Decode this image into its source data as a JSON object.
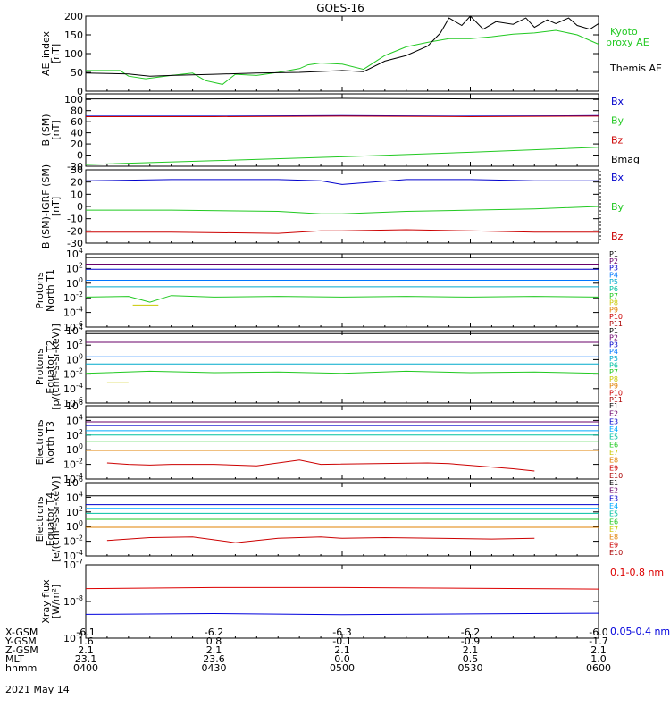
{
  "title": "GOES-16",
  "date": "2021 May 14",
  "x_ticks": [
    "0400",
    "0430",
    "0500",
    "0530",
    "0600"
  ],
  "ephemeris": {
    "rows": [
      {
        "label": "X-GSM",
        "values": [
          "-6.1",
          "-6.2",
          "-6.3",
          "-6.2",
          "-6.0"
        ]
      },
      {
        "label": "Y-GSM",
        "values": [
          "1.6",
          "0.8",
          "-0.1",
          "-0.9",
          "-1.7"
        ]
      },
      {
        "label": "Z-GSM",
        "values": [
          "2.1",
          "2.1",
          "2.1",
          "2.1",
          "2.1"
        ]
      },
      {
        "label": "MLT",
        "values": [
          "23.1",
          "23.6",
          "0.0",
          "0.5",
          "1.0"
        ]
      },
      {
        "label": "hhmm",
        "values": [
          "0400",
          "0430",
          "0500",
          "0530",
          "0600"
        ]
      }
    ]
  },
  "chart_data": [
    {
      "type": "line",
      "ylabel": "AE_index [nT]",
      "ylim": [
        0,
        200
      ],
      "yticks": [
        "0",
        "50",
        "100",
        "150",
        "200"
      ],
      "xlim": [
        "04:00",
        "06:00"
      ],
      "legend": [
        "Kyoto proxy AE",
        "Themis AE"
      ],
      "colors": {
        "Kyoto proxy AE": "#22c922",
        "Themis AE": "#000000"
      },
      "series": [
        {
          "name": "Kyoto proxy AE",
          "x": [
            "04:00",
            "04:08",
            "04:10",
            "04:14",
            "04:20",
            "04:25",
            "04:28",
            "04:32",
            "04:35",
            "04:40",
            "04:45",
            "04:50",
            "04:52",
            "04:55",
            "05:00",
            "05:05",
            "05:10",
            "05:15",
            "05:20",
            "05:25",
            "05:30",
            "05:35",
            "05:40",
            "05:45",
            "05:50",
            "05:55",
            "06:00"
          ],
          "values": [
            55,
            55,
            40,
            33,
            42,
            48,
            28,
            18,
            45,
            42,
            50,
            60,
            70,
            75,
            72,
            58,
            95,
            118,
            130,
            140,
            140,
            145,
            152,
            155,
            162,
            150,
            125
          ]
        },
        {
          "name": "Themis AE",
          "x": [
            "04:00",
            "04:10",
            "04:15",
            "04:20",
            "04:30",
            "04:40",
            "04:50",
            "05:00",
            "05:05",
            "05:10",
            "05:15",
            "05:20",
            "05:23",
            "05:25",
            "05:28",
            "05:30",
            "05:33",
            "05:36",
            "05:40",
            "05:43",
            "05:45",
            "05:48",
            "05:50",
            "05:53",
            "05:55",
            "05:58",
            "06:00"
          ],
          "values": [
            48,
            46,
            40,
            42,
            45,
            48,
            50,
            55,
            52,
            80,
            95,
            120,
            155,
            195,
            175,
            200,
            165,
            185,
            178,
            195,
            170,
            190,
            180,
            195,
            175,
            165,
            180
          ]
        }
      ]
    },
    {
      "type": "line",
      "ylabel": "B (SM) [nT]",
      "ylim": [
        -20,
        110
      ],
      "yticks": [
        "-20",
        "0",
        "20",
        "40",
        "60",
        "80",
        "100"
      ],
      "legend": [
        "Bx",
        "By",
        "Bz",
        "Bmag"
      ],
      "colors": {
        "Bx": "#0000cc",
        "By": "#22c922",
        "Bz": "#cc0000",
        "Bmag": "#000000"
      },
      "series": [
        {
          "name": "Bx",
          "x": [
            "04:00",
            "04:30",
            "05:00",
            "05:30",
            "06:00"
          ],
          "values": [
            70,
            70,
            71,
            70,
            71
          ]
        },
        {
          "name": "By",
          "x": [
            "04:00",
            "04:30",
            "05:00",
            "05:30",
            "06:00"
          ],
          "values": [
            -17,
            -10,
            -3,
            5,
            14
          ]
        },
        {
          "name": "Bz",
          "x": [
            "04:00",
            "04:30",
            "05:00",
            "05:30",
            "06:00"
          ],
          "values": [
            69,
            69,
            70,
            69,
            70
          ]
        },
        {
          "name": "Bmag",
          "x": [
            "04:00",
            "04:30",
            "05:00",
            "05:30",
            "06:00"
          ],
          "values": [
            101,
            101,
            102,
            101,
            101
          ]
        }
      ]
    },
    {
      "type": "line",
      "ylabel": "B (SM)-IGRF (SM) [nT]",
      "ylim": [
        -30,
        30
      ],
      "yticks": [
        "-30",
        "-20",
        "-10",
        "0",
        "10",
        "20",
        "30"
      ],
      "legend": [
        "Bx",
        "By",
        "Bz"
      ],
      "colors": {
        "Bx": "#0000cc",
        "By": "#22c922",
        "Bz": "#cc0000"
      },
      "series": [
        {
          "name": "Bx",
          "x": [
            "04:00",
            "04:20",
            "04:45",
            "04:55",
            "05:00",
            "05:15",
            "05:30",
            "05:45",
            "06:00"
          ],
          "values": [
            21,
            22,
            22,
            21,
            18,
            22,
            22,
            21,
            21
          ]
        },
        {
          "name": "By",
          "x": [
            "04:00",
            "04:20",
            "04:45",
            "04:55",
            "05:00",
            "05:15",
            "05:30",
            "05:45",
            "06:00"
          ],
          "values": [
            -3,
            -3,
            -4,
            -6,
            -6,
            -4,
            -3,
            -2,
            0
          ]
        },
        {
          "name": "Bz",
          "x": [
            "04:00",
            "04:20",
            "04:45",
            "04:55",
            "05:00",
            "05:15",
            "05:30",
            "05:45",
            "06:00"
          ],
          "values": [
            -21,
            -21,
            -22,
            -20,
            -20,
            -19,
            -20,
            -21,
            -21
          ]
        }
      ]
    },
    {
      "type": "line",
      "ylabel": "Protons North T1",
      "yscale": "log",
      "ylim_exp": [
        -6,
        4
      ],
      "yticks": [
        "10^-6",
        "10^-4",
        "10^-2",
        "10^0",
        "10^2",
        "10^4"
      ],
      "legend": [
        "P1",
        "P2",
        "P3",
        "P4",
        "P5",
        "P6",
        "P7",
        "P8",
        "P9",
        "P10",
        "P11"
      ],
      "colors": {
        "P1": "#000000",
        "P2": "#6a006a",
        "P3": "#0000cc",
        "P4": "#0077ff",
        "P5": "#00aacc",
        "P6": "#00c0a0",
        "P7": "#22c922",
        "P8": "#c8c800",
        "P9": "#e08000",
        "P10": "#cc0000",
        "P11": "#aa0000"
      },
      "series": [
        {
          "name": "P1",
          "x": [
            "04:00",
            "06:00"
          ],
          "values_exp": [
            3.5,
            3.5
          ]
        },
        {
          "name": "P2",
          "x": [
            "04:00",
            "06:00"
          ],
          "values_exp": [
            2.6,
            2.6
          ]
        },
        {
          "name": "P3",
          "x": [
            "04:00",
            "06:00"
          ],
          "values_exp": [
            1.9,
            1.9
          ]
        },
        {
          "name": "P4",
          "x": [
            "04:00",
            "06:00"
          ],
          "values_exp": [
            0.4,
            0.4
          ]
        },
        {
          "name": "P5",
          "x": [
            "04:00",
            "06:00"
          ],
          "values_exp": [
            -0.5,
            -0.5
          ]
        },
        {
          "name": "P7",
          "x": [
            "04:00",
            "04:10",
            "04:15",
            "04:20",
            "04:30",
            "04:45",
            "05:00",
            "05:15",
            "05:30",
            "05:45",
            "06:00"
          ],
          "values_exp": [
            -1.9,
            -1.8,
            -2.6,
            -1.7,
            -1.9,
            -1.8,
            -1.9,
            -1.8,
            -1.9,
            -1.8,
            -1.9
          ]
        },
        {
          "name": "P8",
          "x": [
            "04:11",
            "04:17"
          ],
          "values_exp": [
            -3.0,
            -3.0
          ]
        }
      ]
    },
    {
      "type": "line",
      "ylabel": "Protons Equator T2 [p/(cm²-s-sr-keV)]",
      "yscale": "log",
      "ylim_exp": [
        -6,
        4
      ],
      "yticks": [
        "10^-6",
        "10^-4",
        "10^-2",
        "10^0",
        "10^2",
        "10^4"
      ],
      "legend": [
        "P1",
        "P2",
        "P3",
        "P4",
        "P5",
        "P6",
        "P7",
        "P8",
        "P9",
        "P10",
        "P11"
      ],
      "colors": {
        "P1": "#000000",
        "P2": "#6a006a",
        "P3": "#0000cc",
        "P4": "#0077ff",
        "P5": "#00aacc",
        "P6": "#00c0a0",
        "P7": "#22c922",
        "P8": "#c8c800",
        "P9": "#e08000",
        "P10": "#cc0000",
        "P11": "#aa0000"
      },
      "series": [
        {
          "name": "P1",
          "x": [
            "04:00",
            "06:00"
          ],
          "values_exp": [
            3.6,
            3.6
          ]
        },
        {
          "name": "P2",
          "x": [
            "04:00",
            "06:00"
          ],
          "values_exp": [
            2.4,
            2.4
          ]
        },
        {
          "name": "P4",
          "x": [
            "04:00",
            "06:00"
          ],
          "values_exp": [
            0.4,
            0.4
          ]
        },
        {
          "name": "P5",
          "x": [
            "04:00",
            "06:00"
          ],
          "values_exp": [
            -0.6,
            -0.6
          ]
        },
        {
          "name": "P7",
          "x": [
            "04:00",
            "04:15",
            "04:30",
            "04:45",
            "05:00",
            "05:15",
            "05:30",
            "05:45",
            "06:00"
          ],
          "values_exp": [
            -1.9,
            -1.6,
            -1.8,
            -1.7,
            -1.9,
            -1.6,
            -1.8,
            -1.7,
            -1.9
          ]
        },
        {
          "name": "P8",
          "x": [
            "04:05",
            "04:10"
          ],
          "values_exp": [
            -3.2,
            -3.2
          ]
        }
      ]
    },
    {
      "type": "line",
      "ylabel": "Electrons North T3",
      "yscale": "log",
      "ylim_exp": [
        -4,
        6
      ],
      "yticks": [
        "10^-4",
        "10^-2",
        "10^0",
        "10^2",
        "10^4",
        "10^6"
      ],
      "legend": [
        "E1",
        "E2",
        "E3",
        "E4",
        "E5",
        "E6",
        "E7",
        "E8",
        "E9",
        "E10"
      ],
      "colors": {
        "E1": "#000000",
        "E2": "#6a006a",
        "E3": "#0000cc",
        "E4": "#00aaff",
        "E5": "#00c0a0",
        "E6": "#22c922",
        "E7": "#c8c800",
        "E8": "#e08000",
        "E9": "#cc0000",
        "E10": "#aa0000"
      },
      "series": [
        {
          "name": "E1",
          "x": [
            "04:00",
            "06:00"
          ],
          "values_exp": [
            4.4,
            4.4
          ]
        },
        {
          "name": "E2",
          "x": [
            "04:00",
            "06:00"
          ],
          "values_exp": [
            3.8,
            3.8
          ]
        },
        {
          "name": "E3",
          "x": [
            "04:00",
            "06:00"
          ],
          "values_exp": [
            3.3,
            3.3
          ]
        },
        {
          "name": "E4",
          "x": [
            "04:00",
            "06:00"
          ],
          "values_exp": [
            2.6,
            2.6
          ]
        },
        {
          "name": "E5",
          "x": [
            "04:00",
            "06:00"
          ],
          "values_exp": [
            2.0,
            2.0
          ]
        },
        {
          "name": "E6",
          "x": [
            "04:00",
            "06:00"
          ],
          "values_exp": [
            1.1,
            1.1
          ]
        },
        {
          "name": "E8",
          "x": [
            "04:00",
            "06:00"
          ],
          "values_exp": [
            -0.1,
            -0.1
          ]
        },
        {
          "name": "E9",
          "x": [
            "04:05",
            "04:10",
            "04:15",
            "04:20",
            "04:30",
            "04:40",
            "04:50",
            "04:55",
            "05:20",
            "05:25",
            "05:40",
            "05:45"
          ],
          "values_exp": [
            -1.8,
            -2.0,
            -2.1,
            -2.0,
            -2.0,
            -2.2,
            -1.4,
            -2.0,
            -1.8,
            -1.9,
            -2.6,
            -2.9
          ]
        }
      ]
    },
    {
      "type": "line",
      "ylabel": "Electrons Equator T4 [e/(cm²-s-sr-keV)]",
      "yscale": "log",
      "ylim_exp": [
        -4,
        6
      ],
      "yticks": [
        "10^-4",
        "10^-2",
        "10^0",
        "10^2",
        "10^4",
        "10^6"
      ],
      "legend": [
        "E1",
        "E2",
        "E3",
        "E4",
        "E5",
        "E6",
        "E7",
        "E8",
        "E9",
        "E10"
      ],
      "colors": {
        "E1": "#000000",
        "E2": "#6a006a",
        "E3": "#0000cc",
        "E4": "#00aaff",
        "E5": "#00c0a0",
        "E6": "#22c922",
        "E7": "#c8c800",
        "E8": "#e08000",
        "E9": "#cc0000",
        "E10": "#aa0000"
      },
      "series": [
        {
          "name": "E1",
          "x": [
            "04:00",
            "06:00"
          ],
          "values_exp": [
            4.2,
            4.2
          ]
        },
        {
          "name": "E2",
          "x": [
            "04:00",
            "06:00"
          ],
          "values_exp": [
            3.5,
            3.5
          ]
        },
        {
          "name": "E3",
          "x": [
            "04:00",
            "06:00"
          ],
          "values_exp": [
            3.0,
            3.0
          ]
        },
        {
          "name": "E4",
          "x": [
            "04:00",
            "06:00"
          ],
          "values_exp": [
            2.5,
            2.5
          ]
        },
        {
          "name": "E5",
          "x": [
            "04:00",
            "06:00"
          ],
          "values_exp": [
            1.8,
            1.8
          ]
        },
        {
          "name": "E6",
          "x": [
            "04:00",
            "06:00"
          ],
          "values_exp": [
            1.0,
            1.0
          ]
        },
        {
          "name": "E8",
          "x": [
            "04:00",
            "06:00"
          ],
          "values_exp": [
            -0.1,
            -0.1
          ]
        },
        {
          "name": "E9",
          "x": [
            "04:05",
            "04:15",
            "04:25",
            "04:35",
            "04:45",
            "04:55",
            "05:00",
            "05:10",
            "05:35",
            "05:45"
          ],
          "values_exp": [
            -1.9,
            -1.5,
            -1.4,
            -2.2,
            -1.6,
            -1.4,
            -1.6,
            -1.5,
            -1.7,
            -1.6
          ]
        }
      ]
    },
    {
      "type": "line",
      "ylabel": "Xray flux [W/m²]",
      "yscale": "log",
      "ylim_exp": [
        -9,
        -7
      ],
      "yticks": [
        "10^-9",
        "10^-8",
        "10^-7"
      ],
      "legend": [
        "0.1-0.8 nm",
        "0.05-0.4 nm"
      ],
      "colors": {
        "0.1-0.8 nm": "#dd0000",
        "0.05-0.4 nm": "#0000dd"
      },
      "series": [
        {
          "name": "0.1-0.8 nm",
          "x": [
            "04:00",
            "04:30",
            "05:00",
            "05:30",
            "06:00"
          ],
          "values_exp": [
            -7.65,
            -7.62,
            -7.62,
            -7.64,
            -7.66
          ]
        },
        {
          "name": "0.05-0.4 nm",
          "x": [
            "04:00",
            "04:30",
            "05:00",
            "05:30",
            "06:00"
          ],
          "values_exp": [
            -8.35,
            -8.33,
            -8.36,
            -8.34,
            -8.32
          ]
        }
      ]
    }
  ]
}
